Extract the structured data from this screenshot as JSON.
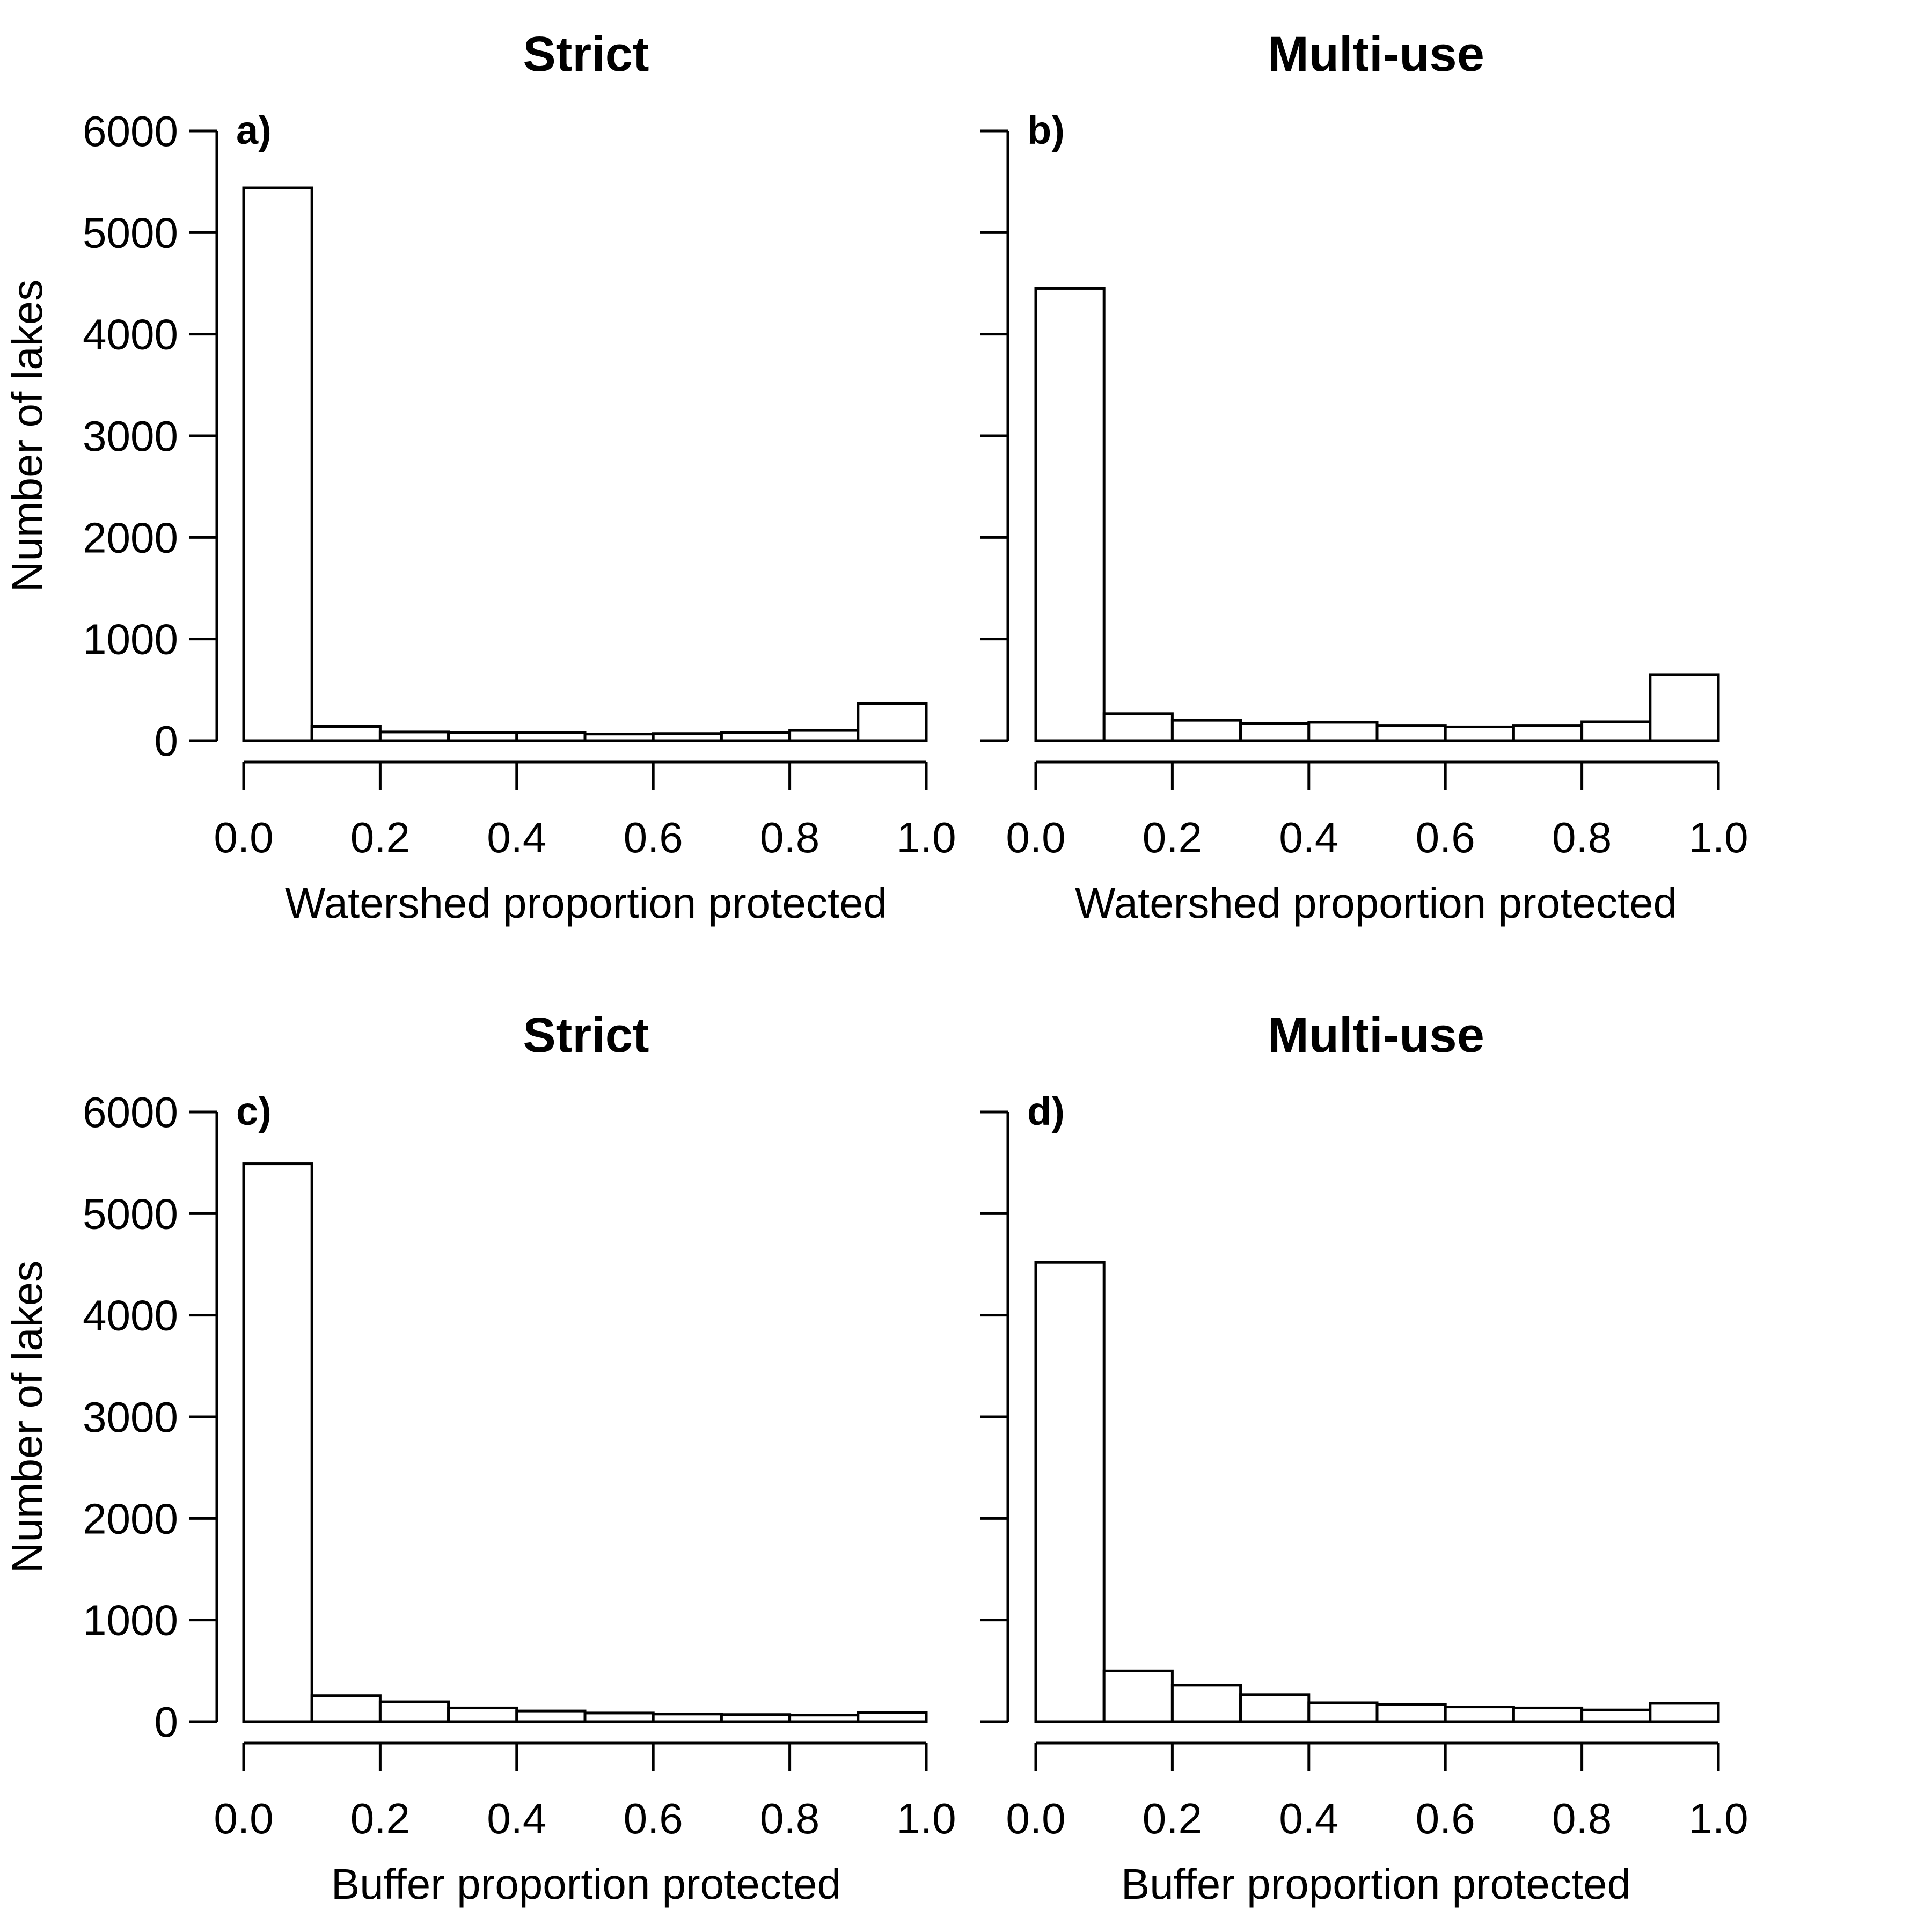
{
  "figure": {
    "ylabel": "Number of lakes"
  },
  "chart_data": [
    {
      "type": "bar",
      "panel_label": "a)",
      "title": "Strict",
      "xlabel": "Watershed proportion protected",
      "ylabel": "Number of lakes",
      "bin_edges": [
        0.0,
        0.1,
        0.2,
        0.3,
        0.4,
        0.5,
        0.6,
        0.7,
        0.8,
        0.9,
        1.0
      ],
      "values": [
        5440,
        140,
        85,
        80,
        80,
        65,
        70,
        80,
        100,
        365
      ],
      "xlim": [
        0,
        1
      ],
      "ylim": [
        0,
        6000
      ],
      "xticks": [
        "0.0",
        "0.2",
        "0.4",
        "0.6",
        "0.8",
        "1.0"
      ],
      "yticks": [
        "0",
        "1000",
        "2000",
        "3000",
        "4000",
        "5000",
        "6000"
      ],
      "grid": false
    },
    {
      "type": "bar",
      "panel_label": "b)",
      "title": "Multi-use",
      "xlabel": "Watershed proportion protected",
      "ylabel": "",
      "bin_edges": [
        0.0,
        0.1,
        0.2,
        0.3,
        0.4,
        0.5,
        0.6,
        0.7,
        0.8,
        0.9,
        1.0
      ],
      "values": [
        4450,
        265,
        200,
        170,
        180,
        150,
        135,
        150,
        185,
        650
      ],
      "xlim": [
        0,
        1
      ],
      "ylim": [
        0,
        6000
      ],
      "xticks": [
        "0.0",
        "0.2",
        "0.4",
        "0.6",
        "0.8",
        "1.0"
      ],
      "yticks": [],
      "grid": false
    },
    {
      "type": "bar",
      "panel_label": "c)",
      "title": "Strict",
      "xlabel": "Buffer proportion protected",
      "ylabel": "Number of lakes",
      "bin_edges": [
        0.0,
        0.1,
        0.2,
        0.3,
        0.4,
        0.5,
        0.6,
        0.7,
        0.8,
        0.9,
        1.0
      ],
      "values": [
        5490,
        255,
        195,
        135,
        105,
        85,
        75,
        70,
        65,
        90
      ],
      "xlim": [
        0,
        1
      ],
      "ylim": [
        0,
        6000
      ],
      "xticks": [
        "0.0",
        "0.2",
        "0.4",
        "0.6",
        "0.8",
        "1.0"
      ],
      "yticks": [
        "0",
        "1000",
        "2000",
        "3000",
        "4000",
        "5000",
        "6000"
      ],
      "grid": false
    },
    {
      "type": "bar",
      "panel_label": "d)",
      "title": "Multi-use",
      "xlabel": "Buffer proportion protected",
      "ylabel": "",
      "bin_edges": [
        0.0,
        0.1,
        0.2,
        0.3,
        0.4,
        0.5,
        0.6,
        0.7,
        0.8,
        0.9,
        1.0
      ],
      "values": [
        4520,
        500,
        360,
        265,
        185,
        170,
        145,
        135,
        115,
        180
      ],
      "xlim": [
        0,
        1
      ],
      "ylim": [
        0,
        6000
      ],
      "xticks": [
        "0.0",
        "0.2",
        "0.4",
        "0.6",
        "0.8",
        "1.0"
      ],
      "yticks": [],
      "grid": false
    }
  ]
}
